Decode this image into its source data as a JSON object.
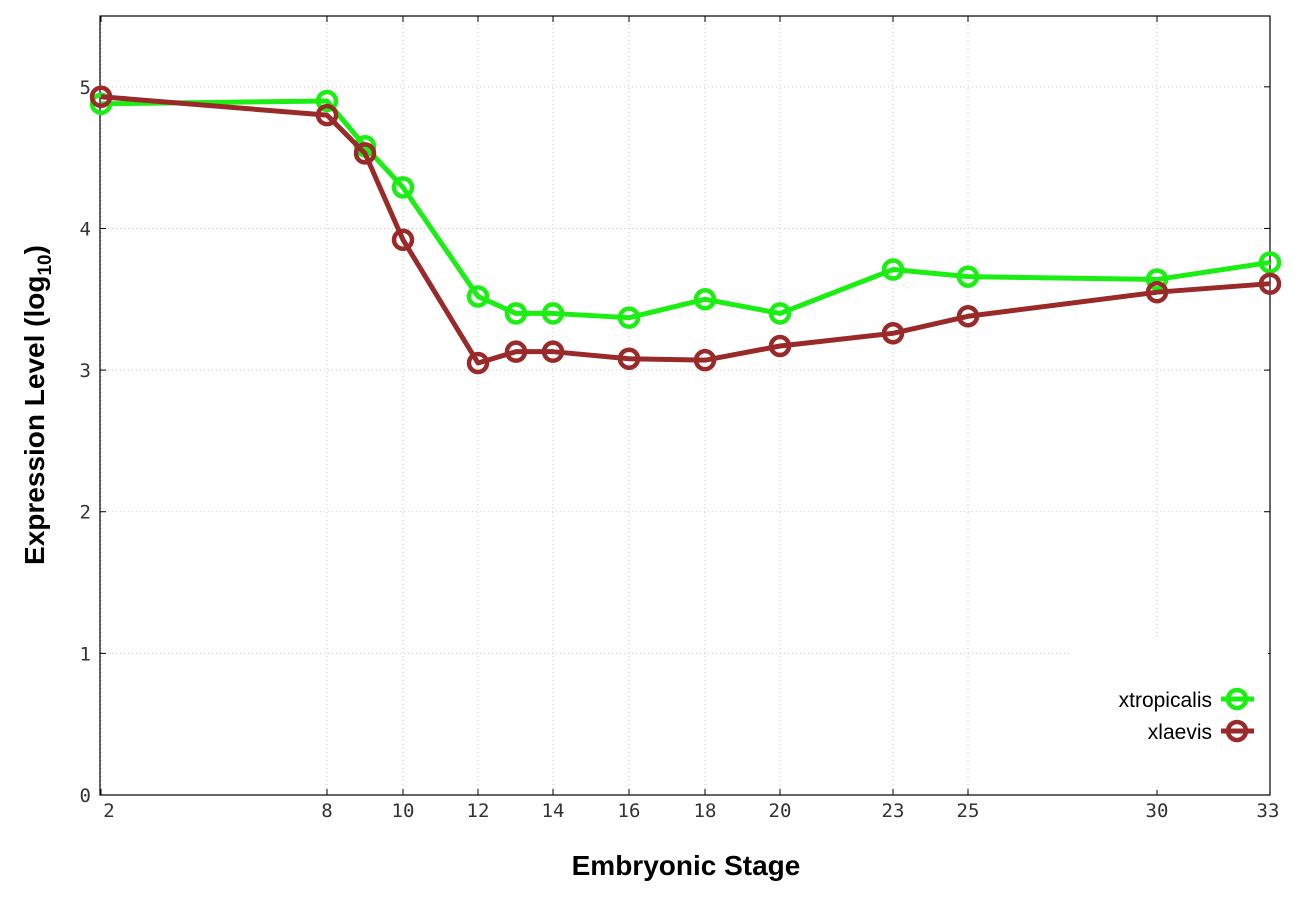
{
  "chart_data": {
    "type": "line",
    "xlabel": "Embryonic Stage",
    "ylabel_main": "Expression Level (log",
    "ylabel_sub": "10",
    "ylabel_close": ")",
    "x_ticks": [
      "2",
      "8",
      "10",
      "12",
      "14",
      "16",
      "18",
      "20",
      "23",
      "25",
      "30",
      "33"
    ],
    "y_ticks": [
      "0",
      "1",
      "2",
      "3",
      "4",
      "5"
    ],
    "ylim": [
      0,
      5.5
    ],
    "grid": true,
    "legend_position": "bottom-right",
    "x": [
      "2",
      "8",
      "9",
      "10",
      "12",
      "13",
      "14",
      "16",
      "18",
      "20",
      "23",
      "25",
      "30",
      "33"
    ],
    "series": [
      {
        "name": "xtropicalis",
        "color": "#1aee12",
        "values": [
          4.88,
          4.9,
          4.58,
          4.29,
          3.52,
          3.4,
          3.4,
          3.37,
          3.5,
          3.4,
          3.71,
          3.66,
          3.64,
          3.76
        ]
      },
      {
        "name": "xlaevis",
        "color": "#9a2a2a",
        "values": [
          4.93,
          4.8,
          4.53,
          3.92,
          3.05,
          3.13,
          3.13,
          3.08,
          3.07,
          3.17,
          3.26,
          3.38,
          3.55,
          3.61
        ]
      }
    ]
  }
}
